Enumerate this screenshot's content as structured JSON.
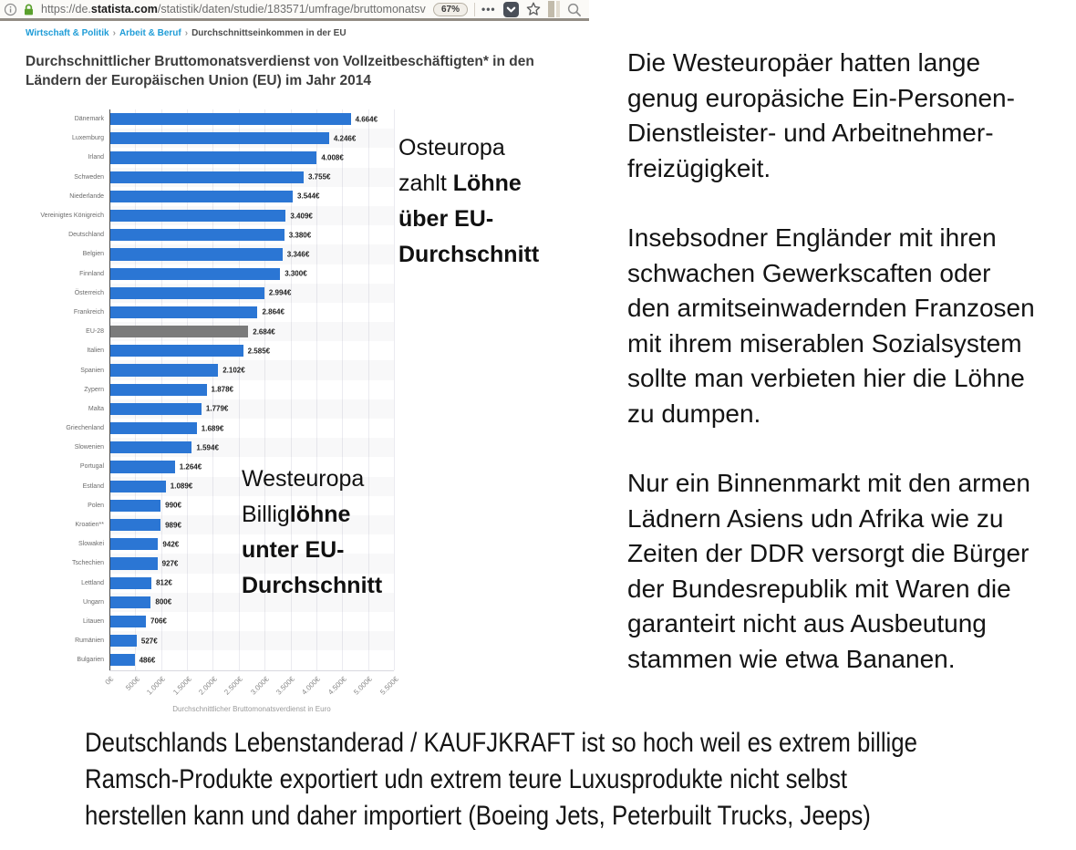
{
  "browser": {
    "url": {
      "scheme_host_prefix": "https://de.",
      "domain": "statista.com",
      "path": "/statistik/daten/studie/183571/umfrage/bruttomonatsv"
    },
    "zoom_badge": "67%",
    "more_label": "•••"
  },
  "breadcrumb": {
    "separator": "›",
    "items": [
      "Wirtschaft & Politik",
      "Arbeit & Beruf",
      "Durchschnittseinkommen in der EU"
    ]
  },
  "chart_data": {
    "type": "bar",
    "orientation": "horizontal",
    "title": "Durchschnittlicher Bruttomonatsverdienst von Vollzeitbeschäftigten* in den\nLändern der Europäischen Union (EU) im Jahr 2014",
    "xlabel": "Durchschnittlicher Bruttomonatsverdienst in Euro",
    "xlim": [
      0,
      5500
    ],
    "grid": true,
    "bar_color": "#2b76d4",
    "highlight_color": "#7b7b7b",
    "highlight_category": "EU-28",
    "categories": [
      "Dänemark",
      "Luxemburg",
      "Irland",
      "Schweden",
      "Niederlande",
      "Vereinigtes Königreich",
      "Deutschland",
      "Belgien",
      "Finnland",
      "Österreich",
      "Frankreich",
      "EU-28",
      "Italien",
      "Spanien",
      "Zypern",
      "Malta",
      "Griechenland",
      "Slowenien",
      "Portugal",
      "Estland",
      "Polen",
      "Kroatien**",
      "Slowakei",
      "Tschechien",
      "Lettland",
      "Ungarn",
      "Litauen",
      "Rumänien",
      "Bulgarien"
    ],
    "values": [
      4664,
      4246,
      4008,
      3755,
      3544,
      3409,
      3380,
      3346,
      3300,
      2994,
      2864,
      2684,
      2585,
      2102,
      1878,
      1779,
      1689,
      1594,
      1264,
      1089,
      990,
      989,
      942,
      927,
      812,
      800,
      706,
      527,
      486
    ],
    "value_labels": [
      "4.664€",
      "4.246€",
      "4.008€",
      "3.755€",
      "3.544€",
      "3.409€",
      "3.380€",
      "3.346€",
      "3.300€",
      "2.994€",
      "2.864€",
      "2.684€",
      "2.585€",
      "2.102€",
      "1.878€",
      "1.779€",
      "1.689€",
      "1.594€",
      "1.264€",
      "1.089€",
      "990€",
      "989€",
      "942€",
      "927€",
      "812€",
      "800€",
      "706€",
      "527€",
      "486€"
    ],
    "xticks": [
      {
        "label": "0€",
        "value": 0
      },
      {
        "label": "500€",
        "value": 500
      },
      {
        "label": "1.000€",
        "value": 1000
      },
      {
        "label": "1.500€",
        "value": 1500
      },
      {
        "label": "2.000€",
        "value": 2000
      },
      {
        "label": "2.500€",
        "value": 2500
      },
      {
        "label": "3.000€",
        "value": 3000
      },
      {
        "label": "3.500€",
        "value": 3500
      },
      {
        "label": "4.000€",
        "value": 4000
      },
      {
        "label": "4.500€",
        "value": 4500
      },
      {
        "label": "5.000€",
        "value": 5000
      },
      {
        "label": "5.500€",
        "value": 5500
      }
    ]
  },
  "annotations": {
    "osteuropa": {
      "lines": [
        {
          "normal": "Osteuropa",
          "bold": ""
        },
        {
          "normal": "zahlt ",
          "bold": "Löhne"
        },
        {
          "normal": "",
          "bold": "über EU-"
        },
        {
          "normal": "",
          "bold": "Durchschnitt"
        }
      ]
    },
    "westeuropa": {
      "lines": [
        {
          "normal": "Westeuropa",
          "bold": ""
        },
        {
          "normal": "Billig",
          "bold": "löhne"
        },
        {
          "normal": "",
          "bold": "unter EU-"
        },
        {
          "normal": "",
          "bold": "Durchschnitt"
        }
      ]
    }
  },
  "right_column": {
    "paragraphs": [
      "Die Westeuropäer hatten lange\ngenug europäsiche Ein-Personen-\nDienstleister- und Arbeitnehmer-\nfreizügigkeit.",
      "Insebsodner Engländer mit ihren\nschwachen Gewerkscaften oder\nden armitseinwadernden Franzosen\nmit ihrem miserablen Sozialsystem\nsollte man verbieten hier die Löhne\nzu dumpen.",
      "Nur ein Binnenmarkt mit den armen\nLädnern Asiens udn Afrika wie zu\nZeiten der DDR versorgt die Bürger\nder Bundesrepublik mit  Waren die\ngaranteirt nicht aus Ausbeutung\nstammen wie etwa Bananen."
    ]
  },
  "bottom_text": {
    "text": "Deutschlands Lebenstanderad / KAUFJKRAFT ist so hoch weil es extrem billige\nRamsch-Produkte exportiert udn extrem teure Luxusprodukte nicht selbst\nherstellen kann und daher importiert (Boeing Jets, Peterbuilt Trucks, Jeeps)"
  }
}
